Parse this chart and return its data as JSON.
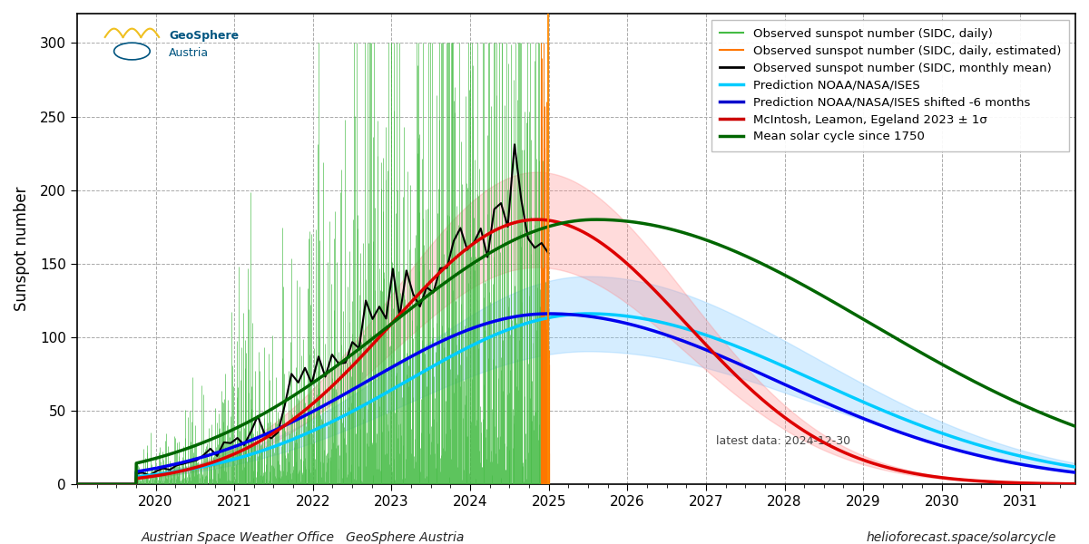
{
  "ylabel": "Sunspot number",
  "xlabel_left": "Austrian Space Weather Office   GeoSphere Austria",
  "xlabel_right": "helioforecast.space/solarcycle",
  "latest_data_label": "latest data: 2024-12-30",
  "background_color": "#ffffff",
  "grid_color": "#aaaaaa",
  "ylim": [
    0,
    320
  ],
  "xlim_start": 2019.0,
  "xlim_end": 2031.7,
  "cycle_start": 2019.75,
  "legend_entries": [
    "Observed sunspot number (SIDC, daily)",
    "Observed sunspot number (SIDC, daily, estimated)",
    "Observed sunspot number (SIDC, monthly mean)",
    "Prediction NOAA/NASA/ISES",
    "Prediction NOAA/NASA/ISES shifted -6 months",
    "McIntosh, Leamon, Egeland 2023 ± 1σ",
    "Mean solar cycle since 1750"
  ],
  "legend_colors": [
    "#44bb44",
    "#ff7700",
    "#000000",
    "#00ccff",
    "#0000cc",
    "#cc0000",
    "#006600"
  ],
  "vertical_line_x": 2024.995,
  "vertical_line_color": "#ff8800"
}
